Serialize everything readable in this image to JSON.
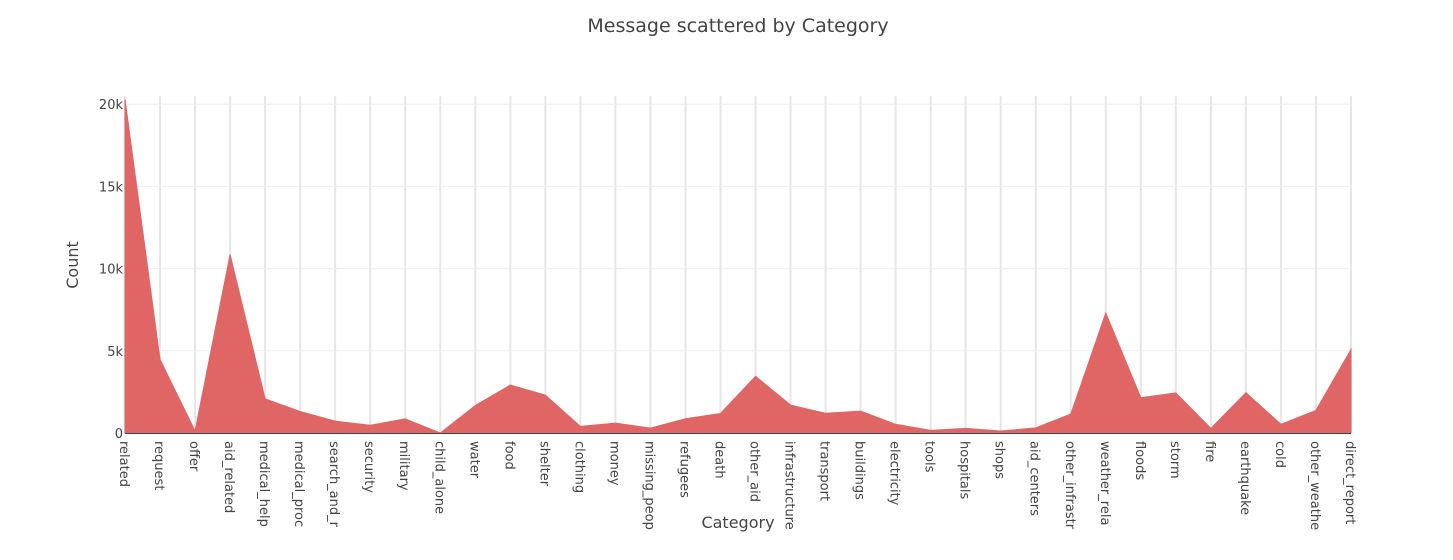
{
  "chart_data": {
    "type": "area",
    "title": "Message scattered by Category",
    "xlabel": "Category",
    "ylabel": "Count",
    "ylim": [
      0,
      20500
    ],
    "yticks": [
      0,
      5000,
      10000,
      15000,
      20000
    ],
    "ytick_labels": [
      "0",
      "5k",
      "10k",
      "15k",
      "20k"
    ],
    "color": "#e06666",
    "grid": true,
    "categories": [
      "related",
      "request",
      "offer",
      "aid_related",
      "medical_help",
      "medical_products",
      "search_and_rescue",
      "security",
      "military",
      "child_alone",
      "water",
      "food",
      "shelter",
      "clothing",
      "money",
      "missing_people",
      "refugees",
      "death",
      "other_aid",
      "infrastructure_related",
      "transport",
      "buildings",
      "electricity",
      "tools",
      "hospitals",
      "shops",
      "aid_centers",
      "other_infrastructure",
      "weather_related",
      "floods",
      "storm",
      "fire",
      "earthquake",
      "cold",
      "other_weather",
      "direct_report"
    ],
    "tick_labels": [
      "related",
      "request",
      "offer",
      "aid_related",
      "medical_help",
      "medical_proc",
      "search_and_r",
      "security",
      "military",
      "child_alone",
      "water",
      "food",
      "shelter",
      "clothing",
      "money",
      "missing_peop",
      "refugees",
      "death",
      "other_aid",
      "infrastructure",
      "transport",
      "buildings",
      "electricity",
      "tools",
      "hospitals",
      "shops",
      "aid_centers",
      "other_infrastr",
      "weather_rela",
      "floods",
      "storm",
      "fire",
      "earthquake",
      "cold",
      "other_weathe",
      "direct_report"
    ],
    "values": [
      20300,
      4470,
      120,
      10860,
      2080,
      1310,
      720,
      470,
      860,
      0,
      1670,
      2920,
      2310,
      400,
      600,
      300,
      870,
      1190,
      3450,
      1700,
      1200,
      1330,
      530,
      160,
      280,
      120,
      310,
      1150,
      7300,
      2150,
      2440,
      280,
      2450,
      530,
      1380,
      5080
    ]
  }
}
